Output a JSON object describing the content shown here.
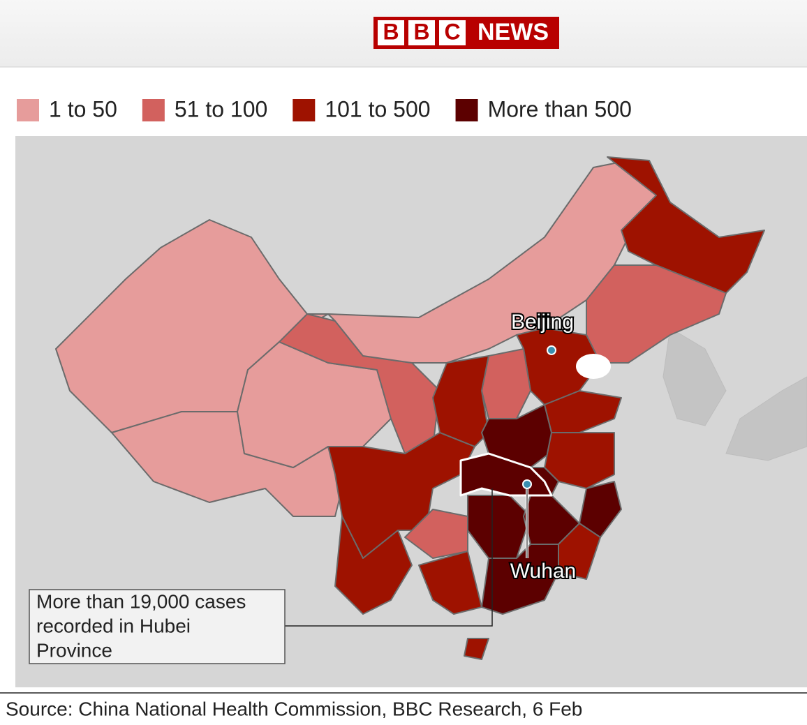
{
  "header": {
    "logo_letters": [
      "B",
      "B",
      "C"
    ],
    "brand": "NEWS"
  },
  "legend": {
    "items": [
      {
        "label": "1 to 50",
        "color": "#e69c9b"
      },
      {
        "label": "51 to 100",
        "color": "#d2615e"
      },
      {
        "label": "101 to 500",
        "color": "#9e1200"
      },
      {
        "label": "More than 500",
        "color": "#5c0000"
      }
    ]
  },
  "map": {
    "labels": {
      "beijing": "Beijing",
      "wuhan": "Wuhan"
    },
    "annotation": [
      "More than 19,000 cases",
      "recorded in Hubei",
      "Province"
    ]
  },
  "footer": {
    "source": "Source: China National Health Commission, BBC Research, 6 Feb"
  }
}
